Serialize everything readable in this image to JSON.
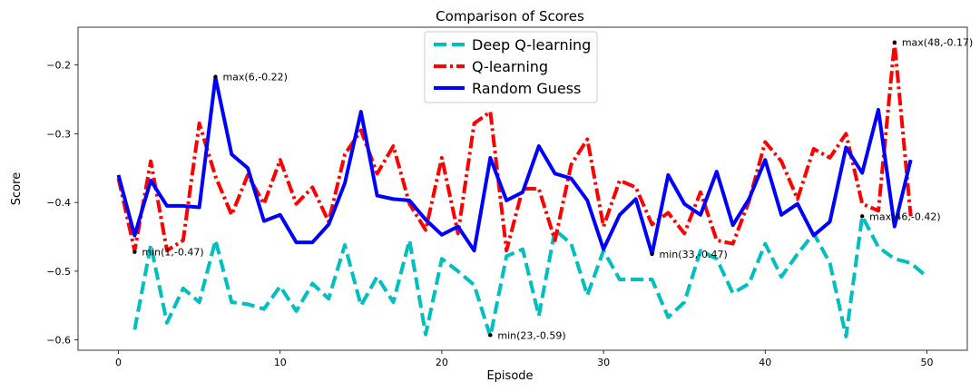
{
  "chart_data": {
    "type": "line",
    "title": "Comparison of Scores",
    "xlabel": "Episode",
    "ylabel": "Score",
    "xlim": [
      -2.5,
      52.5
    ],
    "ylim": [
      -0.615,
      -0.145
    ],
    "xticks": [
      0,
      10,
      20,
      30,
      40,
      50
    ],
    "xtick_labels": [
      "0",
      "10",
      "20",
      "30",
      "40",
      "50"
    ],
    "yticks": [
      -0.6,
      -0.5,
      -0.4,
      -0.3,
      -0.2
    ],
    "ytick_labels": [
      "−0.6",
      "−0.5",
      "−0.4",
      "−0.3",
      "−0.2"
    ],
    "grid": false,
    "legend_position": "top-center",
    "series": [
      {
        "name": "Deep Q-learning",
        "style": "dashed",
        "color": "#00bfbf",
        "x": [
          1,
          2,
          3,
          4,
          5,
          6,
          7,
          8,
          9,
          10,
          11,
          12,
          13,
          14,
          15,
          16,
          17,
          18,
          19,
          20,
          21,
          22,
          23,
          24,
          25,
          26,
          27,
          28,
          29,
          30,
          31,
          32,
          33,
          34,
          35,
          36,
          37,
          38,
          39,
          40,
          41,
          42,
          43,
          44,
          45,
          46,
          47,
          48,
          49,
          50
        ],
        "values": [
          -0.585,
          -0.462,
          -0.575,
          -0.525,
          -0.545,
          -0.455,
          -0.545,
          -0.548,
          -0.555,
          -0.522,
          -0.558,
          -0.518,
          -0.54,
          -0.462,
          -0.55,
          -0.508,
          -0.545,
          -0.455,
          -0.592,
          -0.482,
          -0.5,
          -0.52,
          -0.595,
          -0.478,
          -0.468,
          -0.565,
          -0.44,
          -0.46,
          -0.535,
          -0.47,
          -0.512,
          -0.512,
          -0.512,
          -0.567,
          -0.545,
          -0.47,
          -0.482,
          -0.532,
          -0.518,
          -0.46,
          -0.508,
          -0.475,
          -0.445,
          -0.488,
          -0.595,
          -0.42,
          -0.465,
          -0.482,
          -0.488,
          -0.508
        ]
      },
      {
        "name": "Q-learning",
        "style": "dashdot",
        "color": "#ff0000",
        "x": [
          0,
          1,
          2,
          3,
          4,
          5,
          6,
          7,
          8,
          9,
          10,
          11,
          12,
          13,
          14,
          15,
          16,
          17,
          18,
          19,
          20,
          21,
          22,
          23,
          24,
          25,
          26,
          27,
          28,
          29,
          30,
          31,
          32,
          33,
          34,
          35,
          36,
          37,
          38,
          39,
          40,
          41,
          42,
          43,
          44,
          45,
          46,
          47,
          48,
          49
        ],
        "values": [
          -0.365,
          -0.47,
          -0.34,
          -0.47,
          -0.455,
          -0.285,
          -0.362,
          -0.418,
          -0.36,
          -0.402,
          -0.338,
          -0.402,
          -0.378,
          -0.428,
          -0.33,
          -0.295,
          -0.358,
          -0.318,
          -0.402,
          -0.44,
          -0.335,
          -0.445,
          -0.285,
          -0.268,
          -0.47,
          -0.38,
          -0.38,
          -0.455,
          -0.345,
          -0.308,
          -0.435,
          -0.368,
          -0.378,
          -0.432,
          -0.415,
          -0.445,
          -0.385,
          -0.455,
          -0.46,
          -0.398,
          -0.312,
          -0.34,
          -0.395,
          -0.322,
          -0.335,
          -0.3,
          -0.402,
          -0.412,
          -0.168,
          -0.42
        ]
      },
      {
        "name": "Random Guess",
        "style": "solid",
        "color": "#0000ff",
        "x": [
          0,
          1,
          2,
          3,
          4,
          5,
          6,
          7,
          8,
          9,
          10,
          11,
          12,
          13,
          14,
          15,
          16,
          17,
          18,
          19,
          20,
          21,
          22,
          23,
          24,
          25,
          26,
          27,
          28,
          29,
          30,
          31,
          32,
          33,
          34,
          35,
          36,
          37,
          38,
          39,
          40,
          41,
          42,
          43,
          44,
          45,
          46,
          47,
          48,
          49
        ],
        "values": [
          -0.36,
          -0.448,
          -0.368,
          -0.405,
          -0.405,
          -0.407,
          -0.218,
          -0.33,
          -0.35,
          -0.427,
          -0.418,
          -0.458,
          -0.458,
          -0.432,
          -0.372,
          -0.268,
          -0.39,
          -0.395,
          -0.397,
          -0.425,
          -0.447,
          -0.435,
          -0.47,
          -0.335,
          -0.397,
          -0.385,
          -0.318,
          -0.358,
          -0.365,
          -0.397,
          -0.468,
          -0.418,
          -0.395,
          -0.475,
          -0.36,
          -0.402,
          -0.418,
          -0.355,
          -0.433,
          -0.395,
          -0.338,
          -0.418,
          -0.402,
          -0.448,
          -0.428,
          -0.32,
          -0.357,
          -0.265,
          -0.435,
          -0.338
        ]
      }
    ],
    "annotations": [
      {
        "text": "min(1,-0.47)",
        "x": 1,
        "y": -0.472,
        "series": "Q-learning"
      },
      {
        "text": "max(6,-0.22)",
        "x": 6,
        "y": -0.217,
        "series": "Random Guess"
      },
      {
        "text": "min(23,-0.59)",
        "x": 23,
        "y": -0.593,
        "series": "Deep Q-learning"
      },
      {
        "text": "min(33,-0.47)",
        "x": 33,
        "y": -0.475,
        "series": "Random Guess"
      },
      {
        "text": "max(48,-0.17)",
        "x": 48,
        "y": -0.167,
        "series": "Q-learning"
      },
      {
        "text": "max(46,-0.42)",
        "x": 46,
        "y": -0.42,
        "series": "Deep Q-learning"
      }
    ]
  }
}
